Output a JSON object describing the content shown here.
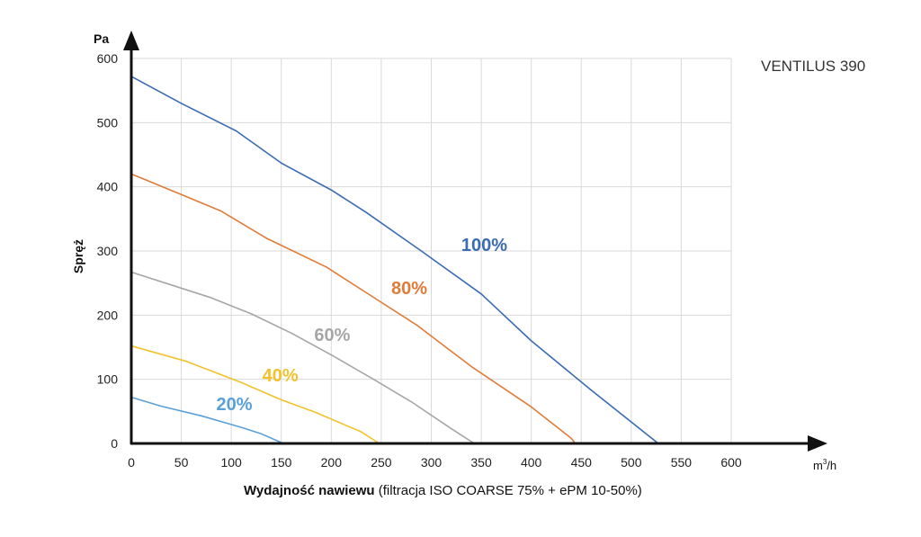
{
  "chart_data": {
    "type": "line",
    "title": "VENTILUS 390",
    "xlabel_bold": "Wydajność nawiewu",
    "xlabel_rest": " (filtracja ISO COARSE 75% + ePM 10-50%)",
    "xunit_base": "m",
    "xunit_sup": "3",
    "xunit_tail": "/h",
    "ylabel": "Spręż",
    "yunit": "Pa",
    "xlim": [
      0,
      600
    ],
    "ylim": [
      0,
      600
    ],
    "x_ticks": [
      "0",
      "50",
      "100",
      "150",
      "200",
      "250",
      "300",
      "350",
      "400",
      "450",
      "500",
      "550",
      "600"
    ],
    "y_ticks": [
      "0",
      "100",
      "200",
      "300",
      "400",
      "500",
      "600"
    ],
    "grid": true,
    "series": [
      {
        "name": "100%",
        "color": "#3a6cb3",
        "x": [
          0,
          50,
          105,
          150,
          200,
          235,
          290,
          350,
          400,
          460,
          527
        ],
        "y": [
          572,
          530,
          487,
          437,
          395,
          360,
          300,
          233,
          160,
          83,
          0
        ],
        "label_at": [
          330,
          300
        ]
      },
      {
        "name": "80%",
        "color": "#e07b39",
        "x": [
          0,
          50,
          90,
          135,
          195,
          245,
          285,
          340,
          400,
          440,
          444
        ],
        "y": [
          420,
          388,
          362,
          320,
          275,
          225,
          185,
          120,
          57,
          8,
          0
        ],
        "label_at": [
          260,
          233
        ]
      },
      {
        "name": "60%",
        "color": "#a6a6a6",
        "x": [
          0,
          40,
          80,
          120,
          160,
          200,
          240,
          280,
          320,
          343
        ],
        "y": [
          267,
          247,
          227,
          202,
          172,
          138,
          102,
          65,
          23,
          0
        ],
        "label_at": [
          183,
          160
        ]
      },
      {
        "name": "40%",
        "color": "#f2c22c",
        "x": [
          0,
          55,
          110,
          150,
          185,
          230,
          248
        ],
        "y": [
          152,
          128,
          95,
          68,
          48,
          18,
          0
        ],
        "label_at": [
          131,
          97
        ]
      },
      {
        "name": "20%",
        "color": "#5aa0d8",
        "x": [
          0,
          30,
          70,
          110,
          130,
          152
        ],
        "y": [
          72,
          58,
          43,
          25,
          15,
          0
        ],
        "label_at": [
          85,
          52
        ]
      }
    ]
  }
}
